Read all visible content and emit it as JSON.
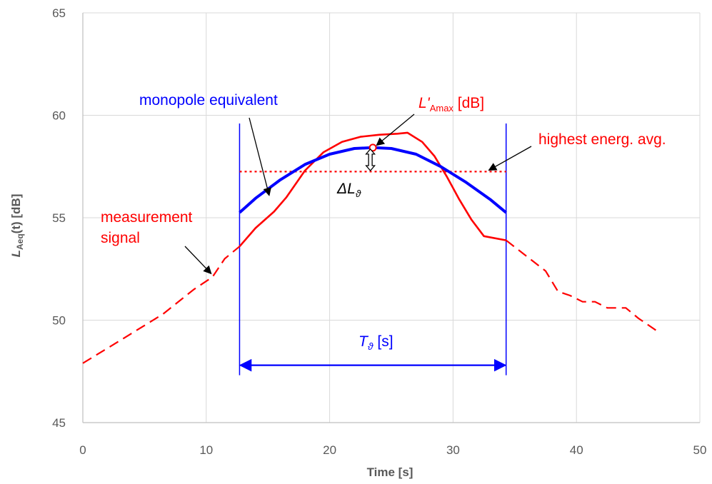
{
  "chart_data": {
    "type": "line",
    "xlabel": "Time [s]",
    "ylabel_main": "L",
    "ylabel_sub": "Aeq",
    "ylabel_rest": "(t) [dB]",
    "xlim": [
      0,
      50
    ],
    "ylim": [
      45,
      65
    ],
    "xticks": [
      0,
      10,
      20,
      30,
      40,
      50
    ],
    "yticks": [
      45,
      50,
      55,
      60,
      65
    ],
    "grid": true,
    "colors": {
      "measurement": "#ff0000",
      "monopole": "#0000ff",
      "highest": "#ff0000",
      "annotation": "#000000",
      "grid": "#d9d9d9",
      "axis": "#bfbfbf"
    },
    "series": [
      {
        "name": "measurement signal",
        "style": "dashed-outside-interval",
        "x": [
          0,
          3,
          6.5,
          9,
          10.5,
          11.5,
          12.7,
          14,
          15.5,
          16.5,
          18,
          19.5,
          21,
          22.5,
          24,
          25.5,
          26.3,
          27.5,
          28.5,
          29.5,
          30.5,
          31.5,
          32.5,
          34.3,
          36,
          37.5,
          38.5,
          39.5,
          40.5,
          41.5,
          42.5,
          44,
          45,
          46.7
        ],
        "y": [
          47.9,
          49,
          50.3,
          51.5,
          52.1,
          53,
          53.6,
          54.5,
          55.3,
          56,
          57.3,
          58.2,
          58.7,
          58.95,
          59.05,
          59.1,
          59.15,
          58.7,
          58,
          57,
          55.9,
          54.9,
          54.1,
          53.9,
          53.1,
          52.4,
          51.4,
          51.2,
          50.9,
          50.9,
          50.6,
          50.6,
          50.1,
          49.4
        ]
      },
      {
        "name": "monopole equivalent",
        "style": "solid",
        "x": [
          12.7,
          14,
          16,
          18,
          20,
          22,
          23.5,
          25,
          27,
          29,
          31,
          33,
          34.3
        ],
        "y": [
          55.25,
          55.95,
          56.85,
          57.6,
          58.1,
          58.38,
          58.42,
          58.38,
          58.1,
          57.5,
          56.75,
          55.9,
          55.25
        ]
      },
      {
        "name": "highest energ. avg.",
        "style": "dotted",
        "x": [
          12.7,
          34.3
        ],
        "y": [
          57.25,
          57.25
        ]
      }
    ],
    "interval": {
      "start": 12.7,
      "end": 34.3,
      "label_main": "T",
      "label_sub": "ϑ",
      "label_rest": " [s]",
      "arrow_level": 47.8,
      "line_top": 59.6
    },
    "peak": {
      "x": 23.5,
      "y": 58.42
    },
    "delta": {
      "x": 23.3,
      "top": 58.35,
      "bottom": 57.3,
      "label_main": "ΔL",
      "label_sub": "ϑ"
    },
    "annotations": {
      "monopole": "monopole equivalent",
      "lamax_main": "L'",
      "lamax_sub": "Amax",
      "lamax_rest": " [dB]",
      "highest": "highest energ. avg.",
      "measurement_line1": "measurement",
      "measurement_line2": "signal"
    }
  }
}
